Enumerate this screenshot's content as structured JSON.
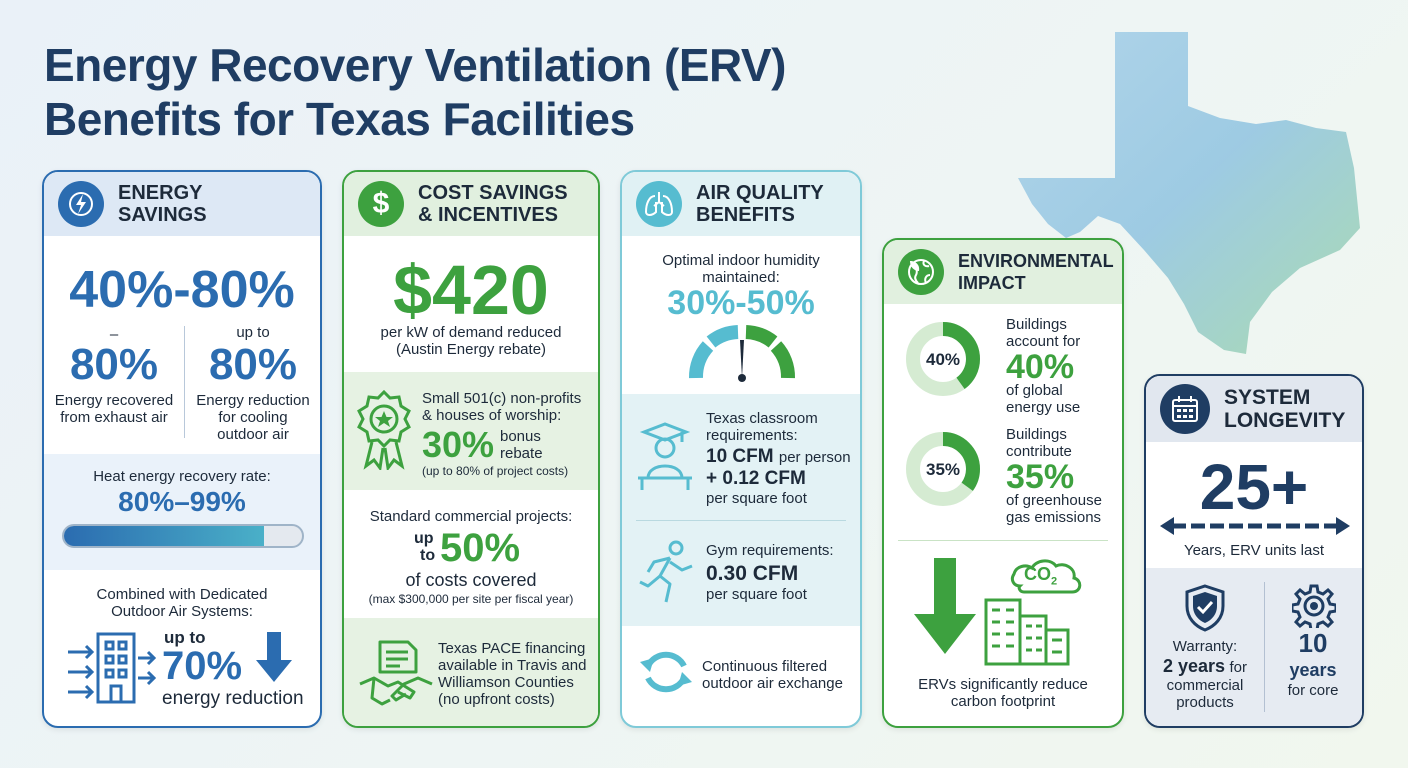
{
  "title": {
    "line1": "Energy Recovery Ventilation (ERV)",
    "line2": "Benefits for Texas Facilities"
  },
  "colors": {
    "title": "#1f3d63",
    "energy_blue": "#2b6cb0",
    "cost_green": "#3da13f",
    "air_teal": "#56bcd0",
    "env_green": "#3da13f",
    "longevity_navy": "#1f3d63"
  },
  "energy": {
    "head1": "ENERGY",
    "head2": "SAVINGS",
    "icon": "lightning-icon",
    "big_range": "40%-80%",
    "left_dash": "–",
    "left_value": "80%",
    "left_label1": "Energy recovered",
    "left_label2": "from exhaust air",
    "right_prefix": "up to",
    "right_value": "80%",
    "right_label1": "Energy reduction",
    "right_label2": "for cooling",
    "right_label3": "outdoor air",
    "heat_label": "Heat energy recovery rate:",
    "heat_value": "80%–99%",
    "heat_fill": 0.84,
    "doas_label1": "Combined with Dedicated",
    "doas_label2": "Outdoor Air Systems:",
    "doas_prefix": "up to",
    "doas_value": "70%",
    "doas_suffix": "energy reduction",
    "building_icon": "building-airflow-icon",
    "down_icon": "down-arrow-icon"
  },
  "cost": {
    "head1": "COST SAVINGS",
    "head2": "& INCENTIVES",
    "icon": "dollar-icon",
    "big_value": "$420",
    "big_label1": "per kW of demand reduced",
    "big_label2": "(Austin Energy rebate)",
    "nonprofit_label1": "Small 501(c) non-profits",
    "nonprofit_label2": "& houses of worship:",
    "nonprofit_value": "30%",
    "nonprofit_suffix1": "bonus",
    "nonprofit_suffix2": "rebate",
    "nonprofit_note": "(up to 80% of project costs)",
    "commercial_label": "Standard commercial projects:",
    "commercial_prefix1": "up",
    "commercial_prefix2": "to",
    "commercial_value": "50%",
    "commercial_suffix": "of costs covered",
    "commercial_note": "(max $300,000 per site per fiscal year)",
    "pace_line1": "Texas PACE financing",
    "pace_line2": "available in Travis and",
    "pace_line3": "Williamson Counties",
    "pace_line4": "(no upfront costs)",
    "award_icon": "award-badge-icon",
    "handshake_icon": "handshake-document-icon"
  },
  "air": {
    "head1": "AIR QUALITY",
    "head2": "BENEFITS",
    "icon": "lungs-icon",
    "humidity_label1": "Optimal indoor humidity",
    "humidity_label2": "maintained:",
    "humidity_value": "30%-50%",
    "gauge_icon": "humidity-gauge-icon",
    "classroom_label1": "Texas classroom",
    "classroom_label2": "requirements:",
    "classroom_value1": "10 CFM",
    "classroom_value1_suffix": "per person",
    "classroom_value2": "+ 0.12 CFM",
    "classroom_value2_suffix": "per square foot",
    "classroom_icon": "student-desk-icon",
    "gym_label": "Gym requirements:",
    "gym_value": "0.30 CFM",
    "gym_suffix": "per square foot",
    "gym_icon": "running-person-icon",
    "exchange_line1": "Continuous filtered",
    "exchange_line2": "outdoor air exchange",
    "exchange_icon": "recycle-arrows-icon"
  },
  "environment": {
    "head1": "ENVIRONMENTAL",
    "head2": "IMPACT",
    "icon": "globe-leaf-icon",
    "donut1_value": "40%",
    "donut1_fraction": 0.4,
    "donut1_label1": "Buildings",
    "donut1_label2": "account for",
    "donut1_big": "40%",
    "donut1_label3": "of global",
    "donut1_label4": "energy use",
    "donut2_value": "35%",
    "donut2_fraction": 0.35,
    "donut2_label1": "Buildings",
    "donut2_label2": "contribute",
    "donut2_big": "35%",
    "donut2_label3": "of greenhouse",
    "donut2_label4": "gas emissions",
    "co2_text": "CO",
    "co2_sub": "2",
    "footer1": "ERVs significantly reduce",
    "footer2": "carbon footprint",
    "down_icon": "down-arrow-icon",
    "building_icon": "building-co2-icon"
  },
  "longevity": {
    "head1": "SYSTEM",
    "head2": "LONGEVITY",
    "icon": "calendar-icon",
    "big_value": "25+",
    "big_label": "Years, ERV units last",
    "warranty_label": "Warranty:",
    "warranty_value": "2 years",
    "warranty_suffix": "for",
    "warranty_label2": "commercial",
    "warranty_label3": "products",
    "core_value1": "10",
    "core_value2": "years",
    "core_label": "for core",
    "shield_icon": "shield-check-icon",
    "gear_icon": "gear-icon"
  }
}
